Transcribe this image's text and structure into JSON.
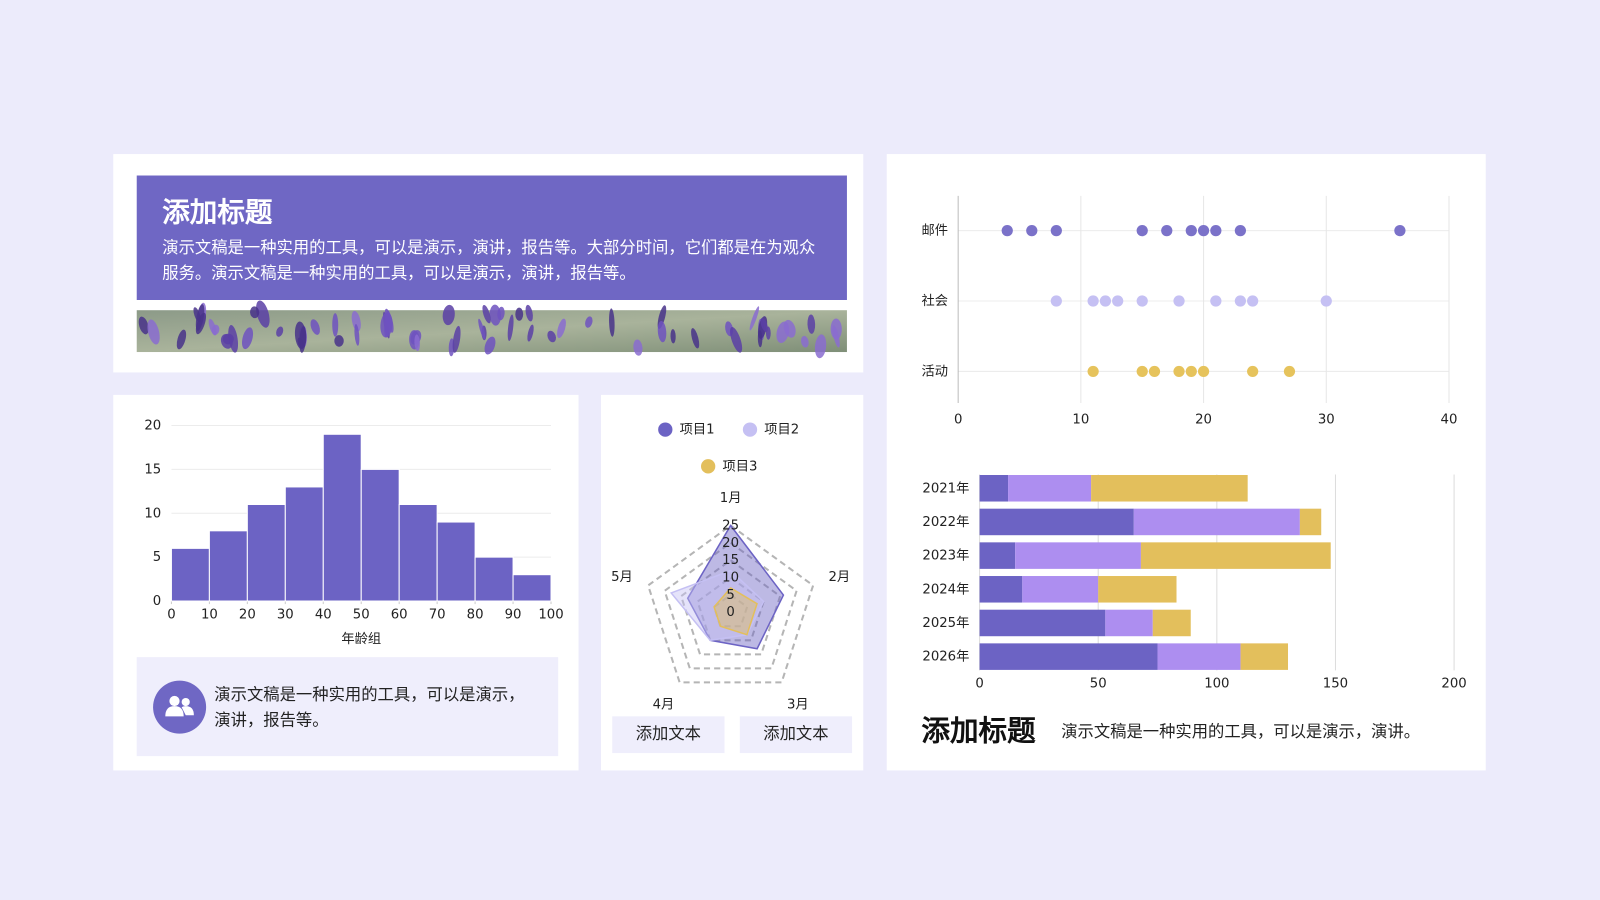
{
  "header": {
    "title": "添加标题",
    "text": "演示文稿是一种实用的工具，可以是演示，演讲，报告等。大部分时间，它们都是在为观众服务。演示文稿是一种实用的工具，可以是演示，演讲，报告等。"
  },
  "info_box": {
    "text": "演示文稿是一种实用的工具，可以是演示，演讲，报告等。"
  },
  "buttons": [
    "添加文本",
    "添加文本"
  ],
  "footer": {
    "title": "添加标题",
    "text": "演示文稿是一种实用的工具，可以是演示，演讲。"
  },
  "chart_data": [
    {
      "type": "histogram",
      "bins": [
        0,
        10,
        20,
        30,
        40,
        50,
        60,
        70,
        80,
        90,
        100
      ],
      "values": [
        6,
        8,
        11,
        13,
        19,
        15,
        11,
        9,
        5,
        3
      ],
      "color": "#6c63c4",
      "xlabel": "年龄组",
      "xlim": [
        0,
        100
      ],
      "xticks": [
        0,
        10,
        20,
        30,
        40,
        50,
        60,
        70,
        80,
        90,
        100
      ],
      "ylim": [
        0,
        20
      ],
      "yticks": [
        0,
        5,
        10,
        15,
        20
      ],
      "grid": true
    },
    {
      "type": "radar",
      "categories": [
        "1月",
        "2月",
        "3月",
        "4月",
        "5月"
      ],
      "ylim": [
        0,
        25
      ],
      "yticks": [
        0,
        5,
        10,
        15,
        20,
        25
      ],
      "series": [
        {
          "name": "项目1",
          "color": "#6c63c4",
          "values": [
            25,
            16,
            13,
            10,
            13
          ]
        },
        {
          "name": "项目2",
          "color": "#c5c0f3",
          "values": [
            12,
            10,
            8,
            10,
            18
          ]
        },
        {
          "name": "项目3",
          "color": "#e3bf5c",
          "values": [
            7,
            8,
            8,
            5,
            5
          ]
        }
      ]
    },
    {
      "type": "scatter",
      "categories": [
        "邮件",
        "社会",
        "活动"
      ],
      "series": [
        {
          "color": "#7b72c9",
          "values": [
            4,
            6,
            8,
            15,
            17,
            19,
            20,
            21,
            23,
            36
          ]
        },
        {
          "color": "#c5c0f3",
          "values": [
            8,
            11,
            12,
            13,
            15,
            18,
            21,
            23,
            24,
            30
          ]
        },
        {
          "color": "#e6c35c",
          "values": [
            11,
            15,
            16,
            18,
            19,
            20,
            24,
            27
          ]
        }
      ],
      "xlim": [
        0,
        40
      ],
      "xticks": [
        0,
        10,
        20,
        30,
        40
      ],
      "grid": true
    },
    {
      "type": "bar",
      "orientation": "horizontal",
      "stacked": true,
      "categories": [
        "2021年",
        "2022年",
        "2023年",
        "2024年",
        "2025年",
        "2026年"
      ],
      "series": [
        {
          "color": "#6c63c4",
          "values": [
            12,
            65,
            15,
            18,
            53,
            75
          ]
        },
        {
          "color": "#ad8ef0",
          "values": [
            35,
            70,
            53,
            32,
            20,
            35
          ]
        },
        {
          "color": "#e3bf5c",
          "values": [
            66,
            9,
            80,
            33,
            16,
            20
          ]
        }
      ],
      "xlim": [
        0,
        200
      ],
      "xticks": [
        0,
        50,
        100,
        150,
        200
      ],
      "grid": true
    }
  ]
}
